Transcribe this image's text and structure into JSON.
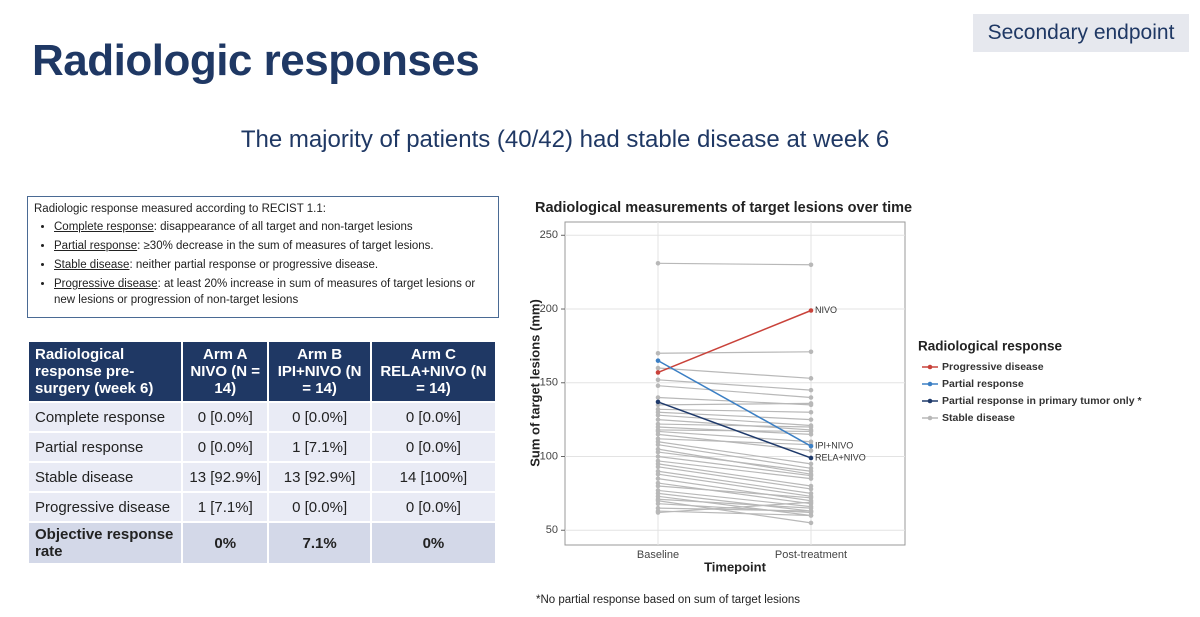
{
  "header": {
    "title": "Radiologic responses",
    "badge": "Secondary endpoint",
    "subtitle": "The majority of patients (40/42) had stable disease at week 6"
  },
  "definitions": {
    "heading": "Radiologic response measured according to RECIST 1.1:",
    "items": [
      {
        "term": "Complete response",
        "text": ": disappearance of all target and non-target lesions"
      },
      {
        "term": "Partial response",
        "text": ": ≥30% decrease in the sum of measures of target lesions."
      },
      {
        "term": "Stable disease",
        "text": ": neither partial response or progressive disease."
      },
      {
        "term": "Progressive disease",
        "text": ": at least 20% increase in sum of measures of target lesions or new lesions or progression of non-target lesions"
      }
    ]
  },
  "table": {
    "header": [
      "Radiological response pre-surgery (week 6)",
      "Arm A NIVO (N = 14)",
      "Arm B IPI+NIVO (N = 14)",
      "Arm C RELA+NIVO (N = 14)"
    ],
    "rows": [
      [
        "Complete response",
        "0 [0.0%]",
        "0 [0.0%]",
        "0 [0.0%]"
      ],
      [
        "Partial response",
        "0 [0.0%]",
        "1 [7.1%]",
        "0 [0.0%]"
      ],
      [
        "Stable disease",
        "13 [92.9%]",
        "13 [92.9%]",
        "14 [100%]"
      ],
      [
        "Progressive disease",
        "1 [7.1%]",
        "0 [0.0%]",
        "0 [0.0%]"
      ],
      [
        "Objective response rate",
        "0%",
        "7.1%",
        "0%"
      ]
    ]
  },
  "chart_data": {
    "type": "line",
    "title": "Radiological measurements of target lesions over time",
    "x_label": "Timepoint",
    "y_label": "Sum of target lesions (mm)",
    "categories": [
      "Baseline",
      "Post-treatment"
    ],
    "ylim": [
      40,
      259
    ],
    "yticks": [
      50,
      100,
      150,
      200,
      250
    ],
    "grid": true,
    "legend_title": "Radiological response",
    "series": [
      {
        "name": "Stable disease",
        "color": "#b8b8b8",
        "lines": [
          {
            "values": [
              231,
              230
            ]
          },
          {
            "values": [
              170,
              171
            ]
          },
          {
            "values": [
              160,
              153
            ]
          },
          {
            "values": [
              152,
              145
            ]
          },
          {
            "values": [
              148,
              140
            ]
          },
          {
            "values": [
              140,
              135
            ]
          },
          {
            "values": [
              135,
              136
            ]
          },
          {
            "values": [
              132,
              130
            ]
          },
          {
            "values": [
              130,
              125
            ]
          },
          {
            "values": [
              128,
              121
            ]
          },
          {
            "values": [
              125,
              118
            ]
          },
          {
            "values": [
              122,
              120
            ]
          },
          {
            "values": [
              120,
              115
            ]
          },
          {
            "values": [
              118,
              117
            ]
          },
          {
            "values": [
              117,
              110
            ]
          },
          {
            "values": [
              115,
              104
            ]
          },
          {
            "values": [
              112,
              108
            ]
          },
          {
            "values": [
              110,
              95
            ]
          },
          {
            "values": [
              108,
              92
            ]
          },
          {
            "values": [
              105,
              88
            ]
          },
          {
            "values": [
              103,
              90
            ]
          },
          {
            "values": [
              100,
              87
            ]
          },
          {
            "values": [
              97,
              85
            ]
          },
          {
            "values": [
              95,
              80
            ]
          },
          {
            "values": [
              93,
              78
            ]
          },
          {
            "values": [
              90,
              75
            ]
          },
          {
            "values": [
              88,
              73
            ]
          },
          {
            "values": [
              85,
              70
            ]
          },
          {
            "values": [
              82,
              68
            ]
          },
          {
            "values": [
              80,
              72
            ]
          },
          {
            "values": [
              77,
              66
            ]
          },
          {
            "values": [
              75,
              63
            ]
          },
          {
            "values": [
              73,
              60
            ]
          },
          {
            "values": [
              71,
              65
            ]
          },
          {
            "values": [
              70,
              55
            ]
          },
          {
            "values": [
              68,
              62
            ]
          },
          {
            "values": [
              65,
              63
            ]
          },
          {
            "values": [
              63,
              60
            ]
          },
          {
            "values": [
              62,
              69
            ]
          }
        ]
      },
      {
        "name": "Progressive disease",
        "color": "#c9423a",
        "lines": [
          {
            "values": [
              157,
              199
            ],
            "label": "NIVO"
          }
        ]
      },
      {
        "name": "Partial response",
        "color": "#3b7fc4",
        "lines": [
          {
            "values": [
              165,
              107
            ],
            "label": "IPI+NIVO"
          }
        ]
      },
      {
        "name": "Partial response in primary tumor only *",
        "color": "#1f3a6b",
        "lines": [
          {
            "values": [
              137,
              99
            ],
            "label": "RELA+NIVO"
          }
        ]
      }
    ],
    "legend_order": [
      1,
      2,
      3,
      0
    ]
  },
  "footnote": "*No partial response based on sum of target lesions"
}
